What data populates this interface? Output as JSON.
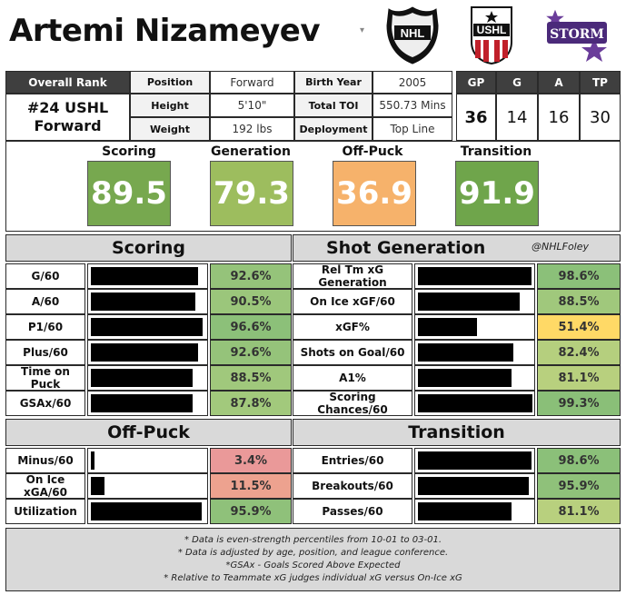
{
  "player": {
    "name": "Artemi Nizameyev",
    "dropdown": "▾"
  },
  "logos": {
    "league1": "NHL",
    "league2": "USHL",
    "team": "STORM"
  },
  "info": {
    "overall_rank_label": "Overall Rank",
    "rank_line1": "#24 USHL",
    "rank_line2": "Forward",
    "position_label": "Position",
    "position": "Forward",
    "height_label": "Height",
    "height": "5'10\"",
    "weight_label": "Weight",
    "weight": "192 lbs",
    "birth_year_label": "Birth Year",
    "birth_year": "2005",
    "toi_label": "Total TOI",
    "toi": "550.73 Mins",
    "deployment_label": "Deployment",
    "deployment": "Top Line"
  },
  "stats": {
    "gp_label": "GP",
    "gp": "36",
    "g_label": "G",
    "g": "14",
    "a_label": "A",
    "a": "16",
    "tp_label": "TP",
    "tp": "30"
  },
  "scores": [
    {
      "label": "Scoring",
      "value": "89.5",
      "color": "#77a84f"
    },
    {
      "label": "Generation",
      "value": "79.3",
      "color": "#9dbd5e"
    },
    {
      "label": "Off-Puck",
      "value": "36.9",
      "color": "#f6b26b"
    },
    {
      "label": "Transition",
      "value": "91.9",
      "color": "#6fa54b"
    }
  ],
  "credit": "@NHLFoley",
  "sections": {
    "scoring": {
      "title": "Scoring",
      "rows": [
        {
          "label": "G/60",
          "pct": "92.6%",
          "value": 92.6,
          "color": "#95c37a"
        },
        {
          "label": "A/60",
          "pct": "90.5%",
          "value": 90.5,
          "color": "#9bc67b"
        },
        {
          "label": "P1/60",
          "pct": "96.6%",
          "value": 96.6,
          "color": "#8cc079"
        },
        {
          "label": "Plus/60",
          "pct": "92.6%",
          "value": 92.6,
          "color": "#95c37a"
        },
        {
          "label": "Time on Puck",
          "pct": "88.5%",
          "value": 88.5,
          "color": "#a0c87c"
        },
        {
          "label": "GSAx/60",
          "pct": "87.8%",
          "value": 87.8,
          "color": "#a2c97c"
        }
      ]
    },
    "generation": {
      "title": "Shot Generation",
      "rows": [
        {
          "label": "Rel Tm xG Generation",
          "pct": "98.6%",
          "value": 98.6,
          "color": "#8bc079"
        },
        {
          "label": "On Ice xGF/60",
          "pct": "88.5%",
          "value": 88.5,
          "color": "#a0c87c"
        },
        {
          "label": "xGF%",
          "pct": "51.4%",
          "value": 51.4,
          "color": "#ffd966"
        },
        {
          "label": "Shots on Goal/60",
          "pct": "82.4%",
          "value": 82.4,
          "color": "#b5cf7e"
        },
        {
          "label": "A1%",
          "pct": "81.1%",
          "value": 81.1,
          "color": "#b8d07e"
        },
        {
          "label": "Scoring Chances/60",
          "pct": "99.3%",
          "value": 99.3,
          "color": "#8abf78"
        }
      ]
    },
    "offpuck": {
      "title": "Off-Puck",
      "rows": [
        {
          "label": "Minus/60",
          "pct": "3.4%",
          "value": 3.4,
          "color": "#ea9999"
        },
        {
          "label": "On Ice xGA/60",
          "pct": "11.5%",
          "value": 11.5,
          "color": "#eda28f"
        },
        {
          "label": "Utilization",
          "pct": "95.9%",
          "value": 95.9,
          "color": "#8fc17a"
        }
      ]
    },
    "transition": {
      "title": "Transition",
      "rows": [
        {
          "label": "Entries/60",
          "pct": "98.6%",
          "value": 98.6,
          "color": "#8bc079"
        },
        {
          "label": "Breakouts/60",
          "pct": "95.9%",
          "value": 95.9,
          "color": "#8fc17a"
        },
        {
          "label": "Passes/60",
          "pct": "81.1%",
          "value": 81.1,
          "color": "#b8d07e"
        }
      ]
    }
  },
  "footer": [
    "* Data is even-strength percentiles from 10-01 to 03-01.",
    "* Data is adjusted by age, position, and league conference.",
    "*GSAx - Goals Scored Above Expected",
    "* Relative to Teammate xG judges individual xG versus On-Ice xG"
  ]
}
